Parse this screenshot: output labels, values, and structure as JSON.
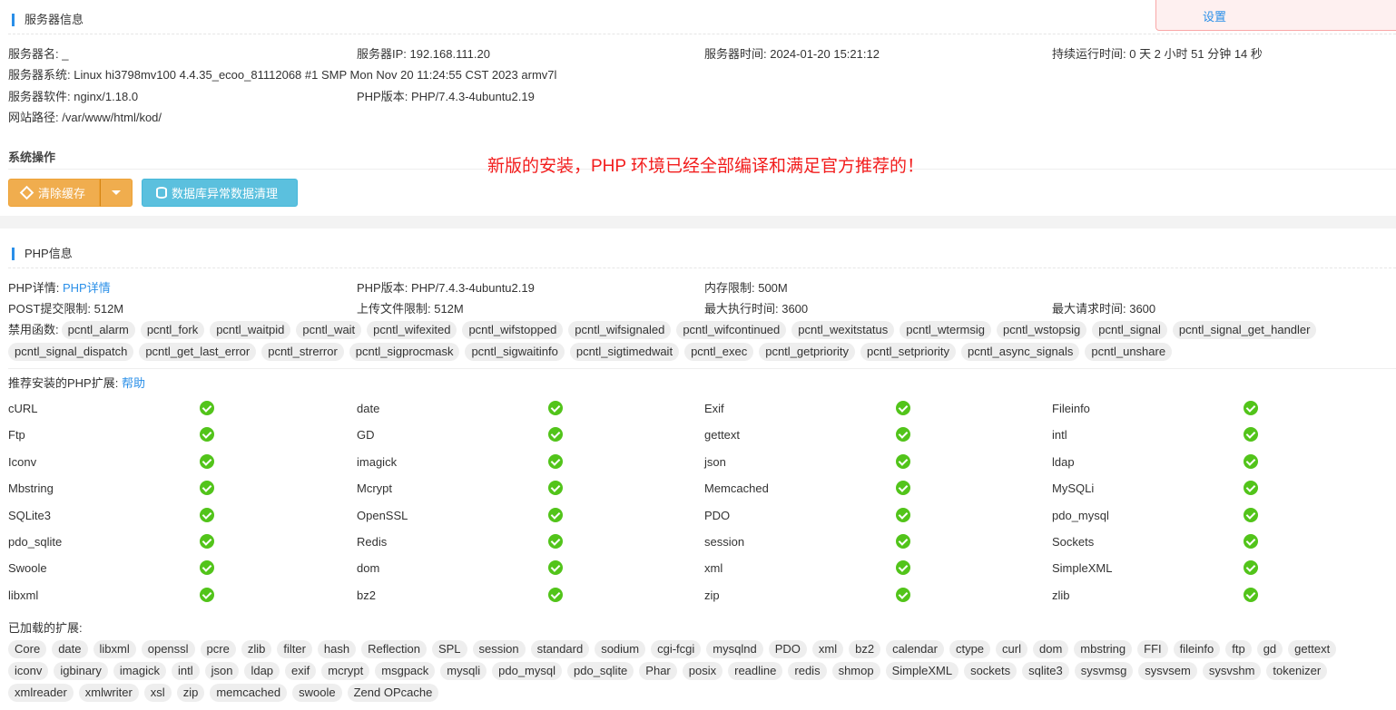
{
  "notice": {
    "link": "设置"
  },
  "server": {
    "title": "服务器信息",
    "name": "服务器名: _",
    "ip": "服务器IP: 192.168.111.20",
    "time": "服务器时间: 2024-01-20 15:21:12",
    "uptime": "持续运行时间: 0 天 2 小时 51 分钟 14 秒",
    "system": "服务器系统: Linux hi3798mv100 4.4.35_ecoo_81112068 #1 SMP Mon Nov 20 11:24:55 CST 2023 armv7l",
    "software": "服务器软件: nginx/1.18.0",
    "php_version": "PHP版本: PHP/7.4.3-4ubuntu2.19",
    "path": "网站路径: /var/www/html/kod/"
  },
  "ops": {
    "title": "系统操作",
    "clear_cache": "清除缓存",
    "db_clean": "数据库异常数据清理",
    "colors": {
      "orange": "#f0ad4e",
      "cyan": "#5bc0de"
    }
  },
  "annotation": "新版的安装，PHP 环境已经全部编译和满足官方推荐的！",
  "php": {
    "title": "PHP信息",
    "detail_label": "PHP详情:",
    "detail_link": "PHP详情",
    "version": "PHP版本: PHP/7.4.3-4ubuntu2.19",
    "memory": "内存限制: 500M",
    "post": "POST提交限制: 512M",
    "upload": "上传文件限制: 512M",
    "max_exec": "最大执行时间: 3600",
    "max_req": "最大请求时间: 3600",
    "disabled_label": "禁用函数:",
    "disabled": [
      "pcntl_alarm",
      "pcntl_fork",
      "pcntl_waitpid",
      "pcntl_wait",
      "pcntl_wifexited",
      "pcntl_wifstopped",
      "pcntl_wifsignaled",
      "pcntl_wifcontinued",
      "pcntl_wexitstatus",
      "pcntl_wtermsig",
      "pcntl_wstopsig",
      "pcntl_signal",
      "pcntl_signal_get_handler",
      "pcntl_signal_dispatch",
      "pcntl_get_last_error",
      "pcntl_strerror",
      "pcntl_sigprocmask",
      "pcntl_sigwaitinfo",
      "pcntl_sigtimedwait",
      "pcntl_exec",
      "pcntl_getpriority",
      "pcntl_setpriority",
      "pcntl_async_signals",
      "pcntl_unshare"
    ],
    "recommended_label": "推荐安装的PHP扩展:",
    "help": "帮助",
    "extensions": [
      "cURL",
      "date",
      "Exif",
      "Fileinfo",
      "Ftp",
      "GD",
      "gettext",
      "intl",
      "Iconv",
      "imagick",
      "json",
      "ldap",
      "Mbstring",
      "Mcrypt",
      "Memcached",
      "MySQLi",
      "SQLite3",
      "OpenSSL",
      "PDO",
      "pdo_mysql",
      "pdo_sqlite",
      "Redis",
      "session",
      "Sockets",
      "Swoole",
      "dom",
      "xml",
      "SimpleXML",
      "libxml",
      "bz2",
      "zip",
      "zlib"
    ],
    "loaded_label": "已加载的扩展:",
    "loaded": [
      "Core",
      "date",
      "libxml",
      "openssl",
      "pcre",
      "zlib",
      "filter",
      "hash",
      "Reflection",
      "SPL",
      "session",
      "standard",
      "sodium",
      "cgi-fcgi",
      "mysqlnd",
      "PDO",
      "xml",
      "bz2",
      "calendar",
      "ctype",
      "curl",
      "dom",
      "mbstring",
      "FFI",
      "fileinfo",
      "ftp",
      "gd",
      "gettext",
      "iconv",
      "igbinary",
      "imagick",
      "intl",
      "json",
      "ldap",
      "exif",
      "mcrypt",
      "msgpack",
      "mysqli",
      "pdo_mysql",
      "pdo_sqlite",
      "Phar",
      "posix",
      "readline",
      "redis",
      "shmop",
      "SimpleXML",
      "sockets",
      "sqlite3",
      "sysvmsg",
      "sysvsem",
      "sysvshm",
      "tokenizer",
      "xmlreader",
      "xmlwriter",
      "xsl",
      "zip",
      "memcached",
      "swoole",
      "Zend OPcache"
    ]
  }
}
